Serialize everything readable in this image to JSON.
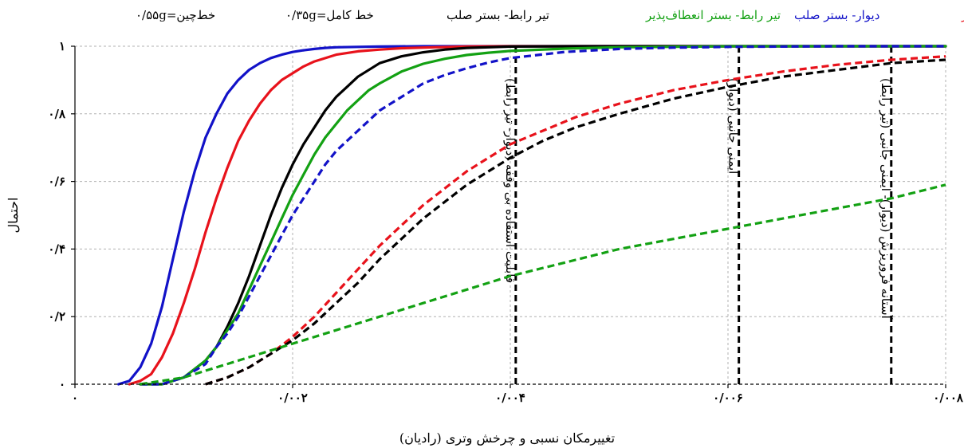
{
  "chart_data": {
    "type": "line",
    "xlabel": "تغییرمکان نسبی و چرخش وتری (رادیان)",
    "ylabel": "احتمال",
    "xlim": [
      0,
      0.008
    ],
    "ylim": [
      0,
      1
    ],
    "grid": true,
    "legend_position": "top",
    "x_ticks": [
      {
        "value": 0,
        "label": "۰"
      },
      {
        "value": 0.002,
        "label": "۰/۰۰۲"
      },
      {
        "value": 0.004,
        "label": "۰/۰۰۴"
      },
      {
        "value": 0.006,
        "label": "۰/۰۰۶"
      },
      {
        "value": 0.008,
        "label": "۰/۰۰۸"
      }
    ],
    "y_ticks": [
      {
        "value": 0,
        "label": "۰"
      },
      {
        "value": 0.2,
        "label": "۰/۲"
      },
      {
        "value": 0.4,
        "label": "۰/۴"
      },
      {
        "value": 0.6,
        "label": "۰/۶"
      },
      {
        "value": 0.8,
        "label": "۰/۸"
      },
      {
        "value": 1,
        "label": "۱"
      }
    ],
    "legend": {
      "colors": [
        {
          "label": "دیوار- بستر انعطاف‌پذیر",
          "color": "#e8121b"
        },
        {
          "label": "دیوار- بستر صلب",
          "color": "#1212c8"
        },
        {
          "label": "تیر رابط- بستر انعطاف‌پذیر",
          "color": "#13a113"
        },
        {
          "label": "تیر رابط- بستر صلب",
          "color": "#000000"
        }
      ],
      "line_styles": [
        {
          "label": "خط کامل=۰/۳۵g",
          "style": "solid"
        },
        {
          "label": "خط‌چین=۰/۵۵g",
          "style": "dashed"
        }
      ]
    },
    "series": [
      {
        "name": "دیوار- بستر صلب",
        "color": "#1212c8",
        "style": "solid",
        "x": [
          0.0004,
          0.0005,
          0.0006,
          0.0007,
          0.0008,
          0.0009,
          0.001,
          0.0011,
          0.0012,
          0.0013,
          0.0014,
          0.0015,
          0.0016,
          0.0017,
          0.0018,
          0.0019,
          0.002,
          0.0021,
          0.0022,
          0.0023,
          0.0024,
          0.0026,
          0.0028,
          0.0032,
          0.0036,
          0.004,
          0.008
        ],
        "y": [
          0.0,
          0.01,
          0.05,
          0.12,
          0.23,
          0.37,
          0.51,
          0.63,
          0.73,
          0.8,
          0.86,
          0.9,
          0.93,
          0.95,
          0.965,
          0.975,
          0.983,
          0.988,
          0.992,
          0.995,
          0.997,
          0.998,
          0.999,
          1.0,
          1.0,
          1.0,
          1.0
        ]
      },
      {
        "name": "دیوار- بستر انعطاف‌پذیر",
        "color": "#e8121b",
        "style": "solid",
        "x": [
          0.0005,
          0.0006,
          0.0007,
          0.0008,
          0.0009,
          0.001,
          0.0011,
          0.0012,
          0.0013,
          0.0014,
          0.0015,
          0.0016,
          0.0017,
          0.0018,
          0.0019,
          0.002,
          0.0021,
          0.0022,
          0.0024,
          0.0026,
          0.0028,
          0.003,
          0.0033,
          0.0036,
          0.004,
          0.008
        ],
        "y": [
          0.0,
          0.01,
          0.03,
          0.08,
          0.15,
          0.24,
          0.34,
          0.45,
          0.55,
          0.64,
          0.72,
          0.78,
          0.83,
          0.87,
          0.9,
          0.92,
          0.94,
          0.955,
          0.975,
          0.985,
          0.99,
          0.994,
          0.997,
          0.999,
          1.0,
          1.0
        ]
      },
      {
        "name": "تیر رابط- بستر صلب",
        "color": "#000000",
        "style": "solid",
        "x": [
          0.0006,
          0.0008,
          0.001,
          0.0012,
          0.0013,
          0.0014,
          0.0015,
          0.0016,
          0.0017,
          0.0018,
          0.0019,
          0.002,
          0.0021,
          0.0022,
          0.0023,
          0.0024,
          0.0025,
          0.0026,
          0.0027,
          0.0028,
          0.003,
          0.0032,
          0.0034,
          0.0036,
          0.004,
          0.0046,
          0.008
        ],
        "y": [
          0.0,
          0.0,
          0.02,
          0.07,
          0.11,
          0.17,
          0.24,
          0.32,
          0.41,
          0.5,
          0.58,
          0.65,
          0.71,
          0.76,
          0.81,
          0.85,
          0.88,
          0.91,
          0.93,
          0.95,
          0.97,
          0.982,
          0.99,
          0.995,
          0.999,
          1.0,
          1.0
        ]
      },
      {
        "name": "تیر رابط- بستر انعطاف‌پذیر",
        "color": "#13a113",
        "style": "solid",
        "x": [
          0.0006,
          0.0008,
          0.001,
          0.0012,
          0.0013,
          0.0014,
          0.0015,
          0.0016,
          0.0017,
          0.0018,
          0.0019,
          0.002,
          0.0021,
          0.0022,
          0.0023,
          0.0024,
          0.0025,
          0.0026,
          0.0027,
          0.0028,
          0.003,
          0.0032,
          0.0034,
          0.0036,
          0.0038,
          0.004,
          0.0045,
          0.005,
          0.006,
          0.008
        ],
        "y": [
          0.0,
          0.0,
          0.02,
          0.07,
          0.11,
          0.16,
          0.21,
          0.28,
          0.35,
          0.42,
          0.49,
          0.56,
          0.62,
          0.68,
          0.73,
          0.77,
          0.81,
          0.84,
          0.87,
          0.89,
          0.925,
          0.948,
          0.963,
          0.974,
          0.981,
          0.986,
          0.993,
          0.997,
          1.0,
          1.0
        ]
      },
      {
        "name": "دیوار- بستر صلب",
        "color": "#1212c8",
        "style": "dashed",
        "x": [
          0.0006,
          0.0008,
          0.001,
          0.0012,
          0.0013,
          0.0014,
          0.0015,
          0.0016,
          0.0017,
          0.0018,
          0.0019,
          0.002,
          0.0021,
          0.0022,
          0.0023,
          0.0024,
          0.0025,
          0.0026,
          0.0027,
          0.0028,
          0.003,
          0.0032,
          0.0034,
          0.0036,
          0.0038,
          0.004,
          0.0045,
          0.005,
          0.0055,
          0.006,
          0.007,
          0.008
        ],
        "y": [
          0.0,
          0.0,
          0.02,
          0.06,
          0.11,
          0.15,
          0.2,
          0.26,
          0.32,
          0.38,
          0.44,
          0.5,
          0.55,
          0.6,
          0.65,
          0.69,
          0.72,
          0.75,
          0.78,
          0.81,
          0.85,
          0.89,
          0.915,
          0.935,
          0.952,
          0.965,
          0.983,
          0.992,
          0.996,
          0.998,
          1.0,
          1.0
        ]
      },
      {
        "name": "دیوار- بستر انعطاف‌پذیر",
        "color": "#e8121b",
        "style": "dashed",
        "x": [
          0.0012,
          0.0014,
          0.0016,
          0.0018,
          0.002,
          0.0022,
          0.0024,
          0.0026,
          0.0028,
          0.003,
          0.0032,
          0.0034,
          0.0036,
          0.0038,
          0.004,
          0.0043,
          0.0046,
          0.005,
          0.0055,
          0.006,
          0.0065,
          0.007,
          0.0075,
          0.008
        ],
        "y": [
          0.0,
          0.02,
          0.05,
          0.09,
          0.14,
          0.2,
          0.27,
          0.34,
          0.41,
          0.47,
          0.53,
          0.58,
          0.63,
          0.67,
          0.71,
          0.75,
          0.79,
          0.83,
          0.87,
          0.9,
          0.925,
          0.945,
          0.96,
          0.97
        ]
      },
      {
        "name": "تیر رابط- بستر صلب",
        "color": "#000000",
        "style": "dashed",
        "x": [
          0.0012,
          0.0014,
          0.0016,
          0.0018,
          0.002,
          0.0022,
          0.0024,
          0.0026,
          0.0028,
          0.003,
          0.0032,
          0.0034,
          0.0036,
          0.0038,
          0.004,
          0.0043,
          0.0046,
          0.005,
          0.0055,
          0.006,
          0.0065,
          0.007,
          0.0075,
          0.008
        ],
        "y": [
          0.0,
          0.02,
          0.05,
          0.09,
          0.13,
          0.18,
          0.24,
          0.3,
          0.37,
          0.43,
          0.49,
          0.54,
          0.59,
          0.63,
          0.67,
          0.72,
          0.76,
          0.8,
          0.845,
          0.88,
          0.91,
          0.93,
          0.95,
          0.96
        ]
      },
      {
        "name": "تیر رابط- بستر انعطاف‌پذیر",
        "color": "#13a113",
        "style": "dashed",
        "x": [
          0.0006,
          0.001,
          0.0014,
          0.0018,
          0.002,
          0.0024,
          0.0028,
          0.0032,
          0.0036,
          0.004,
          0.0045,
          0.005,
          0.0055,
          0.006,
          0.0065,
          0.007,
          0.0075,
          0.008
        ],
        "y": [
          0.0,
          0.02,
          0.06,
          0.1,
          0.12,
          0.16,
          0.2,
          0.24,
          0.28,
          0.32,
          0.36,
          0.4,
          0.43,
          0.46,
          0.49,
          0.52,
          0.55,
          0.59
        ]
      }
    ],
    "threshold_lines": [
      {
        "x": 0.00405,
        "label": "قابلیت استفاده بی وقفه (دیوار- تیر رابط)"
      },
      {
        "x": 0.0061,
        "label": "ایمنی جانبی (دیوار)"
      },
      {
        "x": 0.0075,
        "label": "آستانه فروریزش (دیوار)- ایمنی جانبی (تیر رابط)"
      }
    ]
  }
}
